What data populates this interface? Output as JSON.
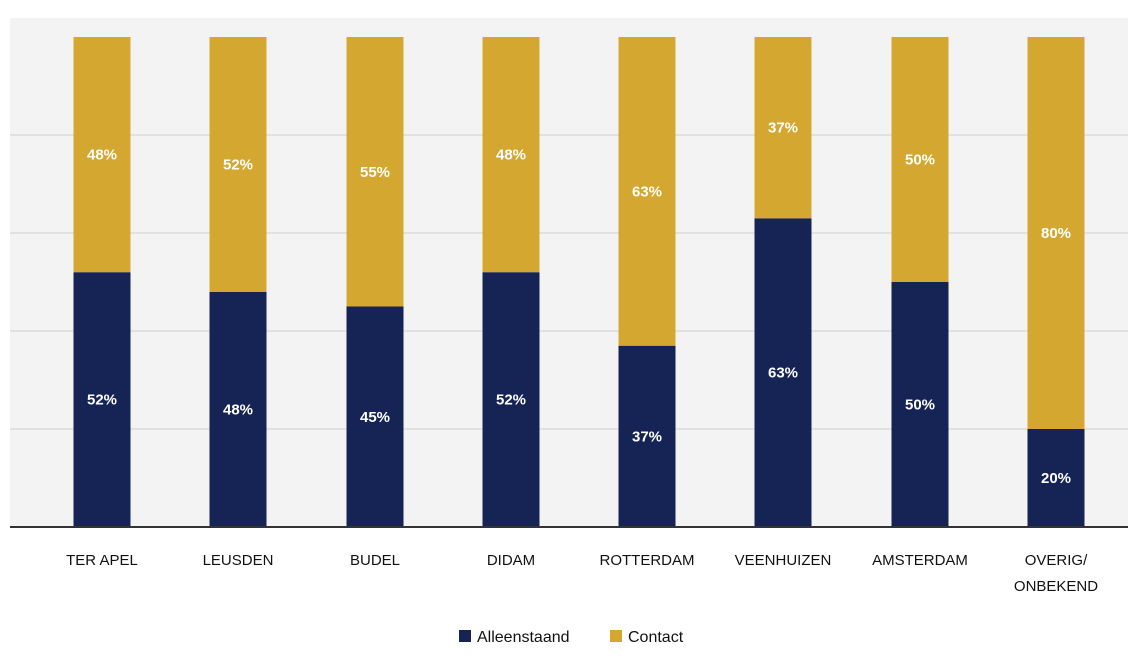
{
  "chart_data": {
    "type": "bar",
    "stacked": true,
    "categories": [
      "TER APEL",
      "LEUSDEN",
      "BUDEL",
      "DIDAM",
      "ROTTERDAM",
      "VEENHUIZEN",
      "AMSTERDAM",
      "OVERIG/ ONBEKEND"
    ],
    "series": [
      {
        "name": "Alleenstaand",
        "color": "#152455",
        "values": [
          52,
          48,
          45,
          52,
          37,
          63,
          50,
          20
        ],
        "labels": [
          "52%",
          "48%",
          "45%",
          "52%",
          "37%",
          "63%",
          "50%",
          "20%"
        ]
      },
      {
        "name": "Contact",
        "color": "#D4A830",
        "values": [
          48,
          52,
          55,
          48,
          63,
          37,
          50,
          80
        ],
        "labels": [
          "48%",
          "52%",
          "55%",
          "48%",
          "63%",
          "37%",
          "50%",
          "80%"
        ]
      }
    ],
    "ylim": [
      0,
      100
    ],
    "grid": true,
    "legend": "bottom"
  }
}
